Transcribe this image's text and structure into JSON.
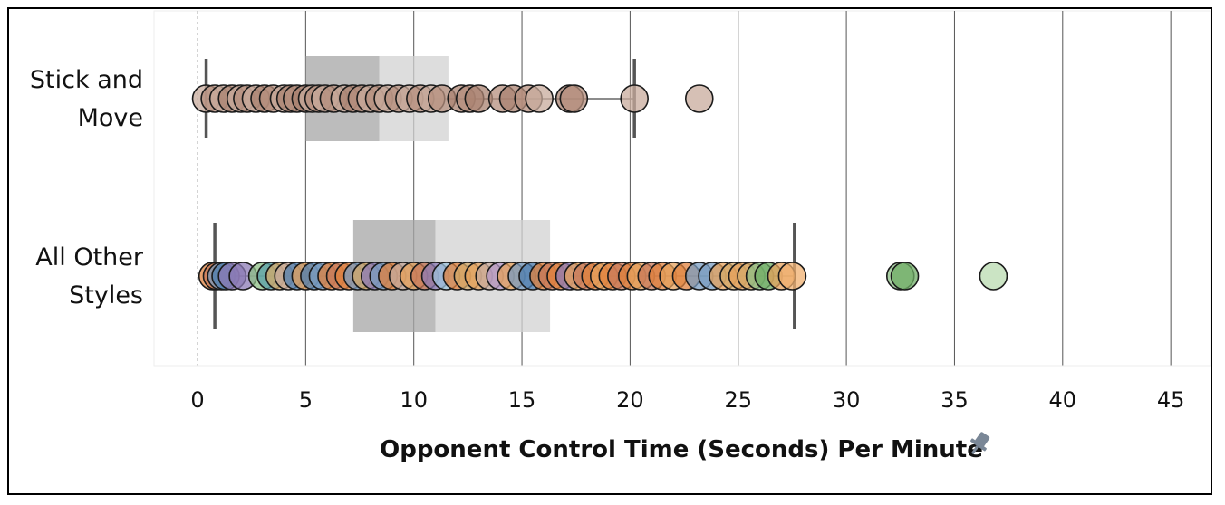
{
  "chart_data": {
    "type": "scatter",
    "subtype": "jittered strip plot with box-and-whisker overlay",
    "orientation": "horizontal",
    "xlabel": "Opponent Control Time (Seconds) Per Minute",
    "xlim": [
      -2,
      47
    ],
    "xticks": [
      0,
      5,
      10,
      15,
      20,
      25,
      30,
      35,
      40,
      45
    ],
    "xtick_labels": [
      "0",
      "5",
      "10",
      "15",
      "20",
      "25",
      "30",
      "35",
      "40",
      "45"
    ],
    "grid": "vertical gridlines at each tick",
    "categories": [
      {
        "label_lines": [
          "Stick and",
          "Move"
        ]
      },
      {
        "label_lines": [
          "All Other",
          "Styles"
        ]
      }
    ],
    "boxes": [
      {
        "whisker_low": 0.4,
        "q1": 5.0,
        "median": 8.4,
        "q3": 11.6,
        "whisker_high": 20.2
      },
      {
        "whisker_low": 0.8,
        "q1": 7.2,
        "median": 11.0,
        "q3": 16.3,
        "whisker_high": 27.6
      }
    ],
    "series": [
      {
        "points": [
          {
            "x": 0.4,
            "color": "#c8ab9c"
          },
          {
            "x": 0.8,
            "color": "#b58f7d"
          },
          {
            "x": 1.2,
            "color": "#c8ab9c"
          },
          {
            "x": 1.6,
            "color": "#a98270"
          },
          {
            "x": 2.0,
            "color": "#c8ab9c"
          },
          {
            "x": 2.3,
            "color": "#b58f7d"
          },
          {
            "x": 2.7,
            "color": "#c8ab9c"
          },
          {
            "x": 3.1,
            "color": "#a98270"
          },
          {
            "x": 3.5,
            "color": "#b58f7d"
          },
          {
            "x": 4.0,
            "color": "#c8ab9c"
          },
          {
            "x": 4.3,
            "color": "#a98270"
          },
          {
            "x": 4.6,
            "color": "#b58f7d"
          },
          {
            "x": 5.0,
            "color": "#a98270"
          },
          {
            "x": 5.3,
            "color": "#c8ab9c"
          },
          {
            "x": 5.6,
            "color": "#b58f7d"
          },
          {
            "x": 5.9,
            "color": "#c8ab9c"
          },
          {
            "x": 6.3,
            "color": "#b58f7d"
          },
          {
            "x": 6.8,
            "color": "#c8ab9c"
          },
          {
            "x": 7.2,
            "color": "#a98270"
          },
          {
            "x": 7.6,
            "color": "#b58f7d"
          },
          {
            "x": 8.0,
            "color": "#c8ab9c"
          },
          {
            "x": 8.4,
            "color": "#b58f7d"
          },
          {
            "x": 8.8,
            "color": "#c8ab9c"
          },
          {
            "x": 9.3,
            "color": "#b58f7d"
          },
          {
            "x": 9.8,
            "color": "#c8ab9c"
          },
          {
            "x": 10.3,
            "color": "#b58f7d"
          },
          {
            "x": 10.8,
            "color": "#c8ab9c"
          },
          {
            "x": 11.3,
            "color": "#b58f7d"
          },
          {
            "x": 12.2,
            "color": "#a98270"
          },
          {
            "x": 12.6,
            "color": "#b58f7d"
          },
          {
            "x": 13.0,
            "color": "#a98270"
          },
          {
            "x": 14.1,
            "color": "#b58f7d"
          },
          {
            "x": 14.6,
            "color": "#a98270"
          },
          {
            "x": 15.3,
            "color": "#b58f7d"
          },
          {
            "x": 15.8,
            "color": "#c8ab9c"
          },
          {
            "x": 17.2,
            "color": "#a98270"
          },
          {
            "x": 17.4,
            "color": "#b58f7d"
          },
          {
            "x": 20.2,
            "color": "#c8ab9c"
          },
          {
            "x": 23.2,
            "color": "#c8ab9c"
          }
        ]
      },
      {
        "points": [
          {
            "x": 0.7,
            "color": "#e0823e"
          },
          {
            "x": 0.9,
            "color": "#c87a5a"
          },
          {
            "x": 1.1,
            "color": "#7a9cc0"
          },
          {
            "x": 1.3,
            "color": "#4f7fb0"
          },
          {
            "x": 1.6,
            "color": "#8c7bb5"
          },
          {
            "x": 2.1,
            "color": "#8c7bb5"
          },
          {
            "x": 3.0,
            "color": "#8dbf86"
          },
          {
            "x": 3.4,
            "color": "#5aa0a8"
          },
          {
            "x": 3.8,
            "color": "#d4a96a"
          },
          {
            "x": 4.2,
            "color": "#c8ab9c"
          },
          {
            "x": 4.6,
            "color": "#4f7fb0"
          },
          {
            "x": 5.0,
            "color": "#e6a15c"
          },
          {
            "x": 5.4,
            "color": "#4f7fb0"
          },
          {
            "x": 5.8,
            "color": "#7a9cc0"
          },
          {
            "x": 6.2,
            "color": "#e0823e"
          },
          {
            "x": 6.6,
            "color": "#c87a5a"
          },
          {
            "x": 7.0,
            "color": "#e0823e"
          },
          {
            "x": 7.4,
            "color": "#7a9cc0"
          },
          {
            "x": 7.8,
            "color": "#d4a96a"
          },
          {
            "x": 8.2,
            "color": "#8c7bb5"
          },
          {
            "x": 8.6,
            "color": "#7a9cc0"
          },
          {
            "x": 9.0,
            "color": "#e0823e"
          },
          {
            "x": 9.5,
            "color": "#c8ab9c"
          },
          {
            "x": 10.0,
            "color": "#e6a15c"
          },
          {
            "x": 10.5,
            "color": "#c87a5a"
          },
          {
            "x": 11.0,
            "color": "#8c7bb5"
          },
          {
            "x": 11.5,
            "color": "#9ec3dc"
          },
          {
            "x": 12.0,
            "color": "#e0823e"
          },
          {
            "x": 12.5,
            "color": "#d4a96a"
          },
          {
            "x": 13.0,
            "color": "#e6a15c"
          },
          {
            "x": 13.5,
            "color": "#c8ab9c"
          },
          {
            "x": 14.0,
            "color": "#b59ac8"
          },
          {
            "x": 14.5,
            "color": "#e6a15c"
          },
          {
            "x": 15.0,
            "color": "#7a9cc0"
          },
          {
            "x": 15.5,
            "color": "#4f7fb0"
          },
          {
            "x": 16.0,
            "color": "#e0823e"
          },
          {
            "x": 16.4,
            "color": "#c87a5a"
          },
          {
            "x": 16.8,
            "color": "#e0823e"
          },
          {
            "x": 17.2,
            "color": "#8c7bb5"
          },
          {
            "x": 17.6,
            "color": "#e6a15c"
          },
          {
            "x": 18.0,
            "color": "#c87a5a"
          },
          {
            "x": 18.4,
            "color": "#e0823e"
          },
          {
            "x": 18.8,
            "color": "#e6a15c"
          },
          {
            "x": 19.2,
            "color": "#e0823e"
          },
          {
            "x": 19.6,
            "color": "#c87a5a"
          },
          {
            "x": 20.1,
            "color": "#e0823e"
          },
          {
            "x": 20.5,
            "color": "#e6a15c"
          },
          {
            "x": 21.0,
            "color": "#c87a5a"
          },
          {
            "x": 21.5,
            "color": "#e0823e"
          },
          {
            "x": 22.0,
            "color": "#e6a15c"
          },
          {
            "x": 22.6,
            "color": "#e0823e"
          },
          {
            "x": 23.2,
            "color": "#7a9cc0"
          },
          {
            "x": 23.8,
            "color": "#7a9cc0"
          },
          {
            "x": 24.3,
            "color": "#e6a15c"
          },
          {
            "x": 24.8,
            "color": "#d4a96a"
          },
          {
            "x": 25.2,
            "color": "#e6a15c"
          },
          {
            "x": 25.6,
            "color": "#d4a96a"
          },
          {
            "x": 26.0,
            "color": "#8dbf86"
          },
          {
            "x": 26.4,
            "color": "#6fae65"
          },
          {
            "x": 27.0,
            "color": "#e6a15c"
          },
          {
            "x": 27.5,
            "color": "#f0b070"
          },
          {
            "x": 32.5,
            "color": "#8dbf86"
          },
          {
            "x": 32.7,
            "color": "#6fae65"
          },
          {
            "x": 36.8,
            "color": "#b9dbb0"
          }
        ]
      }
    ]
  }
}
